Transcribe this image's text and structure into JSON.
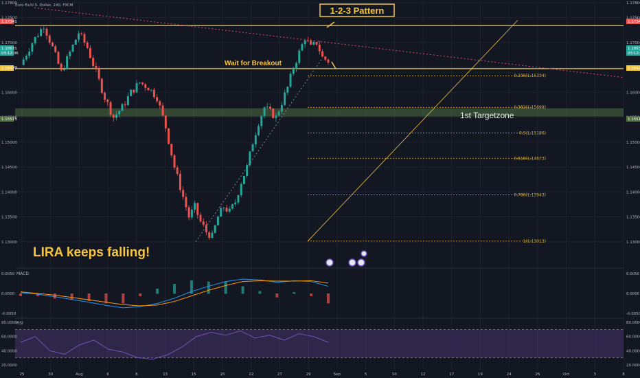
{
  "header": {
    "symbol": "Euro Ex/U.S. Dollar, 240, FXCM"
  },
  "colors": {
    "background": "#131722",
    "grid": "#1e2230",
    "up": "#26a69a",
    "down": "#ef5350",
    "accent": "#f5c542",
    "zone": "#4f6f40",
    "trendline": "#e84a6f",
    "macd_line": "#2196f3",
    "signal_line": "#ff9800",
    "rsi_line": "#7e57c2"
  },
  "annotations": {
    "pattern_label": "1-2-3 Pattern",
    "breakout_label": "Wait for Breakout",
    "target_label": "1st Targetzone",
    "lira_label": "LIRA keeps falling!"
  },
  "price_tags": {
    "top": "1.17341",
    "last": "1.16631",
    "countdown": "03:12:36",
    "breakout": "1.16477",
    "zone": "1.15515"
  },
  "chart_data": [
    {
      "type": "candlestick",
      "title": "Euro Ex/U.S. Dollar, 240, FXCM",
      "ylim": [
        1.125,
        1.178
      ],
      "y_ticks": [
        "1.17800",
        "1.17500",
        "1.17000",
        "1.16500",
        "1.16000",
        "1.15500",
        "1.15000",
        "1.14500",
        "1.14000",
        "1.13500",
        "1.13000"
      ],
      "x_ticks": [
        "25",
        "30",
        "Aug",
        "6",
        "8",
        "13",
        "15",
        "20",
        "22",
        "27",
        "29",
        "Sep",
        "5",
        "10",
        "12",
        "17",
        "19",
        "24",
        "26",
        "Oct",
        "3",
        "8"
      ],
      "close_path": [
        [
          0,
          1.1655
        ],
        [
          4,
          1.17
        ],
        [
          8,
          1.1735
        ],
        [
          11,
          1.169
        ],
        [
          14,
          1.164
        ],
        [
          17,
          1.168
        ],
        [
          20,
          1.172
        ],
        [
          23,
          1.169
        ],
        [
          26,
          1.164
        ],
        [
          29,
          1.159
        ],
        [
          32,
          1.155
        ],
        [
          35,
          1.157
        ],
        [
          38,
          1.16
        ],
        [
          41,
          1.162
        ],
        [
          44,
          1.161
        ],
        [
          47,
          1.159
        ],
        [
          50,
          1.153
        ],
        [
          53,
          1.145
        ],
        [
          56,
          1.139
        ],
        [
          58,
          1.135
        ],
        [
          60,
          1.137
        ],
        [
          62,
          1.134
        ],
        [
          64,
          1.132
        ],
        [
          66,
          1.131
        ],
        [
          68,
          1.135
        ],
        [
          70,
          1.137
        ],
        [
          72,
          1.136
        ],
        [
          74,
          1.138
        ],
        [
          76,
          1.142
        ],
        [
          78,
          1.145
        ],
        [
          80,
          1.15
        ],
        [
          82,
          1.154
        ],
        [
          84,
          1.157
        ],
        [
          86,
          1.156
        ],
        [
          88,
          1.155
        ],
        [
          90,
          1.158
        ],
        [
          92,
          1.161
        ],
        [
          94,
          1.165
        ],
        [
          96,
          1.168
        ],
        [
          98,
          1.171
        ],
        [
          100,
          1.169
        ],
        [
          102,
          1.17
        ],
        [
          104,
          1.167
        ],
        [
          106,
          1.1663
        ]
      ],
      "horizontal_levels": [
        {
          "price": 1.17341,
          "label": "1.17341"
        },
        {
          "price": 1.16477,
          "label": "1.16477"
        }
      ],
      "target_zone": [
        1.15515,
        1.1568
      ],
      "fibonacci": [
        {
          "level": "0.236(1.16334)",
          "price": 1.16334
        },
        {
          "level": "0.382(1.15699)",
          "price": 1.15699
        },
        {
          "level": "0.5(1.15186)",
          "price": 1.15186
        },
        {
          "level": "0.618(1.14673)",
          "price": 1.14673
        },
        {
          "level": "0.786(1.13943)",
          "price": 1.13943
        },
        {
          "level": "1(1.13013)",
          "price": 1.13013
        }
      ]
    },
    {
      "type": "line",
      "title": "MACD",
      "ylim": [
        -0.005,
        0.005
      ],
      "y_ticks": [
        "0.0050",
        "0.0000",
        "-0.0050"
      ],
      "macd": [
        0.0002,
        -0.0002,
        -0.0008,
        -0.0015,
        -0.0022,
        -0.003,
        -0.0036,
        -0.0033,
        -0.0025,
        -0.0012,
        0.0005,
        0.0018,
        0.003,
        0.0036,
        0.0034,
        0.0028,
        0.0032,
        0.003,
        0.0018
      ],
      "signal": [
        0.0004,
        0.0,
        -0.0004,
        -0.001,
        -0.0016,
        -0.0022,
        -0.0028,
        -0.0031,
        -0.0029,
        -0.002,
        -0.0006,
        0.0008,
        0.002,
        0.003,
        0.0032,
        0.0031,
        0.0031,
        0.0032,
        0.0026
      ]
    },
    {
      "type": "line",
      "title": "RSI",
      "ylim": [
        15,
        85
      ],
      "y_ticks": [
        "80.0000",
        "60.0000",
        "40.0000",
        "20.0000"
      ],
      "bands": [
        70,
        30
      ],
      "values": [
        52,
        60,
        40,
        35,
        48,
        55,
        42,
        38,
        30,
        28,
        34,
        45,
        60,
        66,
        62,
        68,
        58,
        62,
        55,
        64,
        60,
        52
      ]
    }
  ]
}
